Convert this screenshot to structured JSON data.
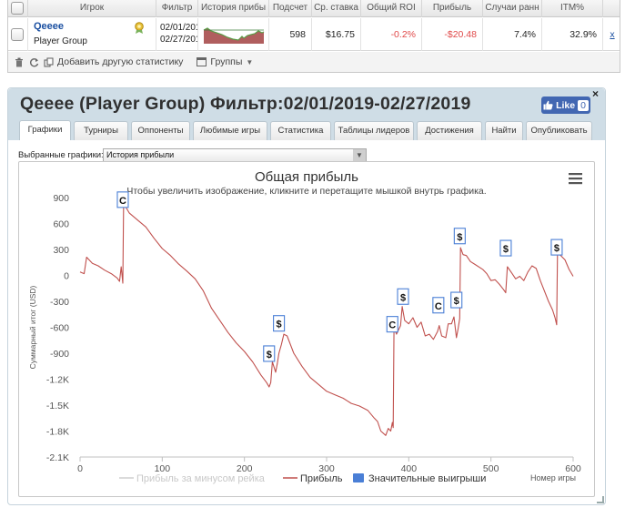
{
  "stats_table": {
    "columns": [
      "",
      "Игрок",
      "Фильтр",
      "История прибы",
      "Подсчет",
      "Ср. ставка",
      "Общий ROI",
      "Прибыль",
      "Случаи ранн",
      "ITM%",
      ""
    ],
    "row": {
      "player_name": "Qeeee",
      "player_group": "Player Group",
      "filter_from": "02/01/201",
      "filter_to": "02/27/201",
      "count": "598",
      "avg_stake": "$16.75",
      "roi": "-0.2%",
      "profit": "-$20.48",
      "early_cases": "7.4%",
      "itm": "32.9%",
      "remove": "x"
    },
    "toolbar": {
      "add_stat_label": "Добавить другую статистику",
      "groups_label": "Группы"
    }
  },
  "panel": {
    "title": "Qeeee (Player Group) Фильтр:02/01/2019-02/27/2019",
    "like_label": "Like",
    "like_count": "0",
    "close": "×",
    "tabs": [
      "Графики",
      "Турниры",
      "Оппоненты",
      "Любимые игры",
      "Статистика",
      "Таблицы лидеров",
      "Достижения",
      "Найти",
      "Опубликовать"
    ],
    "active_tab": "Графики",
    "selector_label": "Выбранные графики:",
    "selector_value": "История прибыли"
  },
  "colors": {
    "profit_line": "#c0504d",
    "rake_line": "#cfcfcf",
    "significant_wins": "#4a7fd6",
    "neg_value": "#e04848",
    "player_link": "#1a4fa0"
  },
  "chart_data": {
    "type": "line",
    "title": "Общая прибыль",
    "subtitle": "Чтобы увеличить изображение, кликните и перетащите мышкой внутрь графика.",
    "xlabel": "Номер игры",
    "ylabel": "Суммарный итог (USD)",
    "xlim": [
      0,
      600
    ],
    "ylim": [
      -2100,
      900
    ],
    "x_ticks": [
      0,
      100,
      200,
      300,
      400,
      500,
      600
    ],
    "y_ticks": [
      900,
      600,
      300,
      0,
      -300,
      -600,
      -900,
      -1200,
      -1500,
      -1800,
      -2100
    ],
    "y_tick_labels": [
      "900",
      "600",
      "300",
      "0",
      "-300",
      "-600",
      "-900",
      "-1.2K",
      "-1.5K",
      "-1.8K",
      "-2.1K"
    ],
    "grid": false,
    "legend_position": "bottom",
    "legend": [
      {
        "name": "Прибыль за минусом рейка",
        "color": "#cfcfcf",
        "kind": "line",
        "disabled": true
      },
      {
        "name": "Прибыль",
        "color": "#c0504d",
        "kind": "line"
      },
      {
        "name": "Значительные выигрыши",
        "color": "#4a7fd6",
        "kind": "box"
      }
    ],
    "series": [
      {
        "name": "Прибыль",
        "points": [
          [
            0,
            40
          ],
          [
            5,
            20
          ],
          [
            8,
            210
          ],
          [
            15,
            140
          ],
          [
            22,
            110
          ],
          [
            30,
            60
          ],
          [
            38,
            20
          ],
          [
            45,
            -30
          ],
          [
            48,
            -70
          ],
          [
            50,
            100
          ],
          [
            52,
            -90
          ],
          [
            53,
            870
          ],
          [
            55,
            800
          ],
          [
            60,
            720
          ],
          [
            70,
            640
          ],
          [
            80,
            560
          ],
          [
            90,
            430
          ],
          [
            100,
            310
          ],
          [
            110,
            230
          ],
          [
            120,
            130
          ],
          [
            130,
            50
          ],
          [
            140,
            -40
          ],
          [
            150,
            -180
          ],
          [
            160,
            -380
          ],
          [
            170,
            -520
          ],
          [
            180,
            -660
          ],
          [
            190,
            -780
          ],
          [
            200,
            -880
          ],
          [
            210,
            -1000
          ],
          [
            220,
            -1150
          ],
          [
            227,
            -1240
          ],
          [
            230,
            -1290
          ],
          [
            232,
            -1240
          ],
          [
            234,
            -1000
          ],
          [
            236,
            -1060
          ],
          [
            238,
            -1120
          ],
          [
            240,
            -1020
          ],
          [
            242,
            -900
          ],
          [
            245,
            -800
          ],
          [
            248,
            -680
          ],
          [
            252,
            -700
          ],
          [
            260,
            -900
          ],
          [
            270,
            -1050
          ],
          [
            280,
            -1180
          ],
          [
            290,
            -1260
          ],
          [
            300,
            -1340
          ],
          [
            310,
            -1380
          ],
          [
            320,
            -1420
          ],
          [
            330,
            -1480
          ],
          [
            340,
            -1510
          ],
          [
            350,
            -1560
          ],
          [
            358,
            -1650
          ],
          [
            362,
            -1690
          ],
          [
            366,
            -1800
          ],
          [
            372,
            -1850
          ],
          [
            375,
            -1770
          ],
          [
            378,
            -1800
          ],
          [
            380,
            -1700
          ],
          [
            381,
            -1760
          ],
          [
            382,
            -600
          ],
          [
            385,
            -680
          ],
          [
            390,
            -580
          ],
          [
            392,
            -360
          ],
          [
            395,
            -520
          ],
          [
            400,
            -560
          ],
          [
            405,
            -490
          ],
          [
            410,
            -600
          ],
          [
            415,
            -540
          ],
          [
            420,
            -700
          ],
          [
            425,
            -680
          ],
          [
            430,
            -740
          ],
          [
            435,
            -650
          ],
          [
            437,
            -580
          ],
          [
            440,
            -700
          ],
          [
            445,
            -720
          ],
          [
            448,
            -560
          ],
          [
            452,
            -560
          ],
          [
            455,
            -480
          ],
          [
            458,
            -720
          ],
          [
            460,
            -620
          ],
          [
            462,
            -500
          ],
          [
            463,
            320
          ],
          [
            466,
            240
          ],
          [
            470,
            230
          ],
          [
            475,
            160
          ],
          [
            480,
            130
          ],
          [
            490,
            70
          ],
          [
            495,
            20
          ],
          [
            500,
            -60
          ],
          [
            505,
            -50
          ],
          [
            510,
            -100
          ],
          [
            515,
            -160
          ],
          [
            518,
            -200
          ],
          [
            520,
            100
          ],
          [
            525,
            30
          ],
          [
            530,
            -40
          ],
          [
            535,
            -10
          ],
          [
            540,
            -60
          ],
          [
            545,
            40
          ],
          [
            550,
            110
          ],
          [
            555,
            80
          ],
          [
            560,
            -60
          ],
          [
            565,
            -180
          ],
          [
            570,
            -300
          ],
          [
            575,
            -400
          ],
          [
            578,
            -490
          ],
          [
            580,
            -570
          ],
          [
            581,
            270
          ],
          [
            585,
            230
          ],
          [
            590,
            180
          ],
          [
            595,
            70
          ],
          [
            600,
            -10
          ]
        ]
      }
    ],
    "markers": [
      {
        "x": 52,
        "y": 870,
        "label": "C"
      },
      {
        "x": 230,
        "y": -910,
        "label": "$"
      },
      {
        "x": 242,
        "y": -560,
        "label": "$"
      },
      {
        "x": 380,
        "y": -570,
        "label": "C"
      },
      {
        "x": 393,
        "y": -250,
        "label": "$"
      },
      {
        "x": 436,
        "y": -350,
        "label": "C"
      },
      {
        "x": 458,
        "y": -290,
        "label": "$"
      },
      {
        "x": 462,
        "y": 450,
        "label": "$"
      },
      {
        "x": 518,
        "y": 310,
        "label": "$"
      },
      {
        "x": 580,
        "y": 320,
        "label": "$"
      }
    ]
  }
}
